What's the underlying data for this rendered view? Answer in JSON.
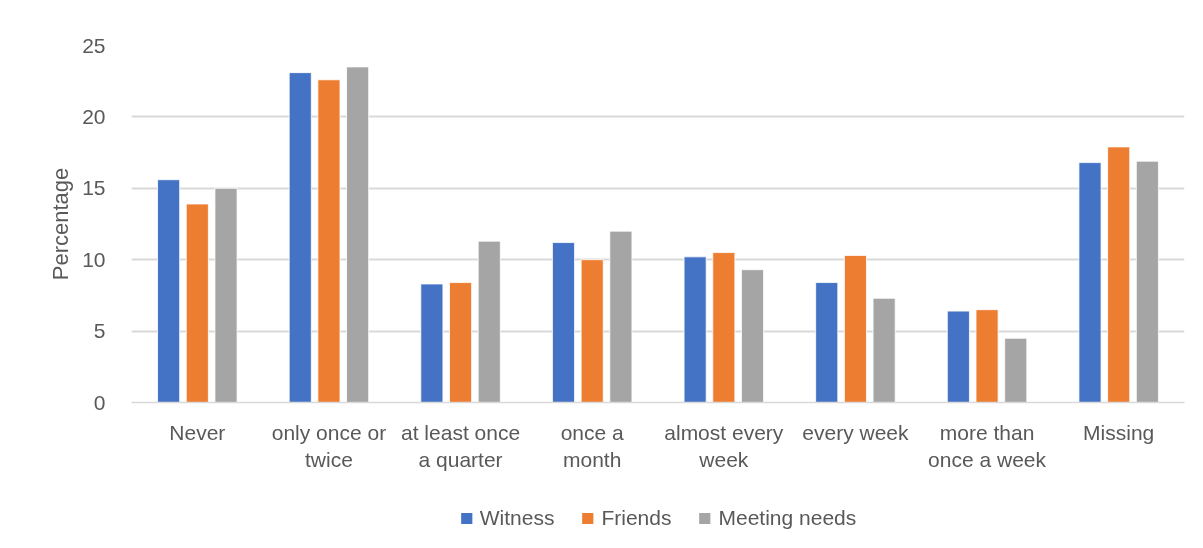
{
  "chart_data": {
    "type": "bar",
    "ylabel": "Percentage",
    "categories": [
      "Never",
      "only once or twice",
      "at least once a quarter",
      "once a month",
      "almost every week",
      "every week",
      "more than once a week",
      "Missing"
    ],
    "series": [
      {
        "name": "Witness",
        "color": "#4472c4",
        "values": [
          15.6,
          23.1,
          8.3,
          11.2,
          10.2,
          8.4,
          6.4,
          16.8
        ]
      },
      {
        "name": "Friends",
        "color": "#ed7d31",
        "values": [
          13.9,
          22.6,
          8.4,
          10.0,
          10.5,
          10.3,
          6.5,
          17.9
        ]
      },
      {
        "name": "Meeting needs",
        "color": "#a5a5a5",
        "values": [
          15.0,
          23.5,
          11.3,
          12.0,
          9.3,
          7.3,
          4.5,
          16.9
        ]
      }
    ],
    "ylim": [
      0,
      25
    ],
    "yticks": [
      0,
      5,
      10,
      15,
      20,
      25
    ],
    "grid": "y",
    "legend": "bottom"
  }
}
